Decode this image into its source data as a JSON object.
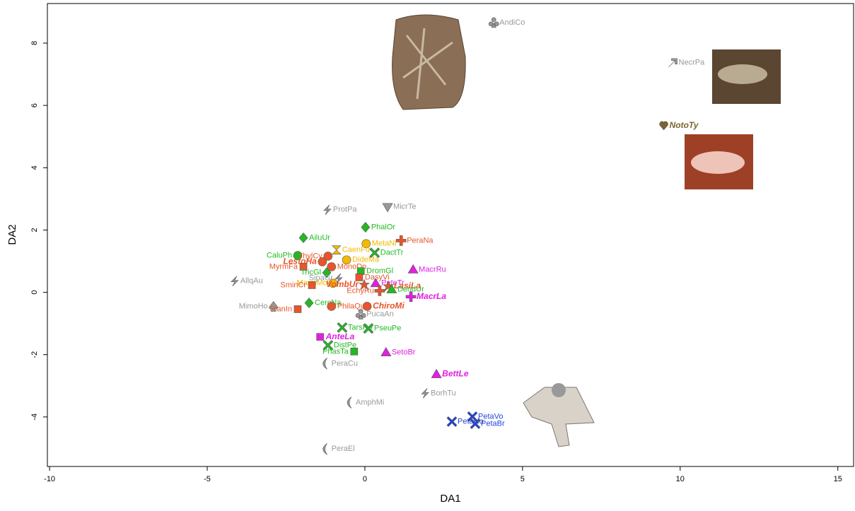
{
  "chart_data": {
    "type": "scatter",
    "x_label": "DA1",
    "y_label": "DA2",
    "xlim": [
      -10.07,
      15.5
    ],
    "ylim": [
      -5.59,
      9.27
    ],
    "xticks": [
      -10,
      -5,
      0,
      5,
      10,
      15
    ],
    "yticks": [
      -4,
      -2,
      0,
      2,
      4,
      6,
      8
    ],
    "points": [
      {
        "label": "AndiCo",
        "x": 4.09,
        "y": 8.66,
        "color": "#999999",
        "marker": "club",
        "emphasis": false
      },
      {
        "label": "NecrPa",
        "x": 9.77,
        "y": 7.37,
        "color": "#999999",
        "marker": "arrow",
        "emphasis": false
      },
      {
        "label": "NotoTy",
        "x": 9.48,
        "y": 5.35,
        "color": "#7a6530",
        "marker": "heart",
        "emphasis": true
      },
      {
        "label": "ProtPa",
        "x": -1.19,
        "y": 2.65,
        "color": "#999999",
        "marker": "bolt",
        "emphasis": false
      },
      {
        "label": "MicrTe",
        "x": 0.72,
        "y": 2.74,
        "color": "#999999",
        "marker": "dtriangle",
        "emphasis": false
      },
      {
        "label": "PhalOr",
        "x": 0.02,
        "y": 2.09,
        "color": "#22b822",
        "marker": "diamond",
        "emphasis": false
      },
      {
        "label": "AiluUr",
        "x": -1.95,
        "y": 1.75,
        "color": "#22b822",
        "marker": "diamond",
        "emphasis": false
      },
      {
        "label": "PeraNa",
        "x": 1.15,
        "y": 1.66,
        "color": "#e8552a",
        "marker": "cross",
        "emphasis": false
      },
      {
        "label": "MetaNi",
        "x": 0.04,
        "y": 1.56,
        "color": "#f5b800",
        "marker": "circle",
        "emphasis": false
      },
      {
        "label": "CaenFu",
        "x": -0.9,
        "y": 1.36,
        "color": "#f5b800",
        "marker": "hourglass",
        "emphasis": false
      },
      {
        "label": "DactTr",
        "x": 0.31,
        "y": 1.27,
        "color": "#22b822",
        "marker": "x",
        "emphasis": false
      },
      {
        "label": "CaluPh",
        "x": -2.13,
        "y": 1.18,
        "color": "#22b822",
        "marker": "circle",
        "emphasis": false
      },
      {
        "label": "ThylCy",
        "x": -1.17,
        "y": 1.16,
        "color": "#e8552a",
        "marker": "circle",
        "emphasis": false
      },
      {
        "label": "DideMa",
        "x": -0.58,
        "y": 1.04,
        "color": "#f5b800",
        "marker": "circle",
        "emphasis": false
      },
      {
        "label": "LestoHa",
        "x": -1.35,
        "y": 0.98,
        "color": "#e8552a",
        "marker": "circle",
        "emphasis": true
      },
      {
        "label": "MyrmFa",
        "x": -1.95,
        "y": 0.82,
        "color": "#e8552a",
        "marker": "square",
        "emphasis": false
      },
      {
        "label": "MonoDo",
        "x": -1.06,
        "y": 0.82,
        "color": "#e8552a",
        "marker": "circle",
        "emphasis": false
      },
      {
        "label": "DromGl",
        "x": -0.13,
        "y": 0.68,
        "color": "#22b822",
        "marker": "square",
        "emphasis": false
      },
      {
        "label": "TricGl",
        "x": -1.21,
        "y": 0.63,
        "color": "#22b822",
        "marker": "diamond",
        "emphasis": false
      },
      {
        "label": "MacrRu",
        "x": 1.53,
        "y": 0.73,
        "color": "#e020e0",
        "marker": "triangle",
        "emphasis": false
      },
      {
        "label": "DasyVi",
        "x": -0.18,
        "y": 0.48,
        "color": "#e8552a",
        "marker": "square",
        "emphasis": false
      },
      {
        "label": "SipaGr",
        "x": -0.83,
        "y": 0.45,
        "color": "#999999",
        "marker": "bolt",
        "emphasis": false
      },
      {
        "label": "AllqAu",
        "x": -4.13,
        "y": 0.36,
        "color": "#999999",
        "marker": "bolt",
        "emphasis": false
      },
      {
        "label": "PeteTr",
        "x": 0.34,
        "y": 0.29,
        "color": "#e020e0",
        "marker": "triangle",
        "emphasis": false
      },
      {
        "label": "MarmMo",
        "x": -1.01,
        "y": 0.29,
        "color": "#f5b800",
        "marker": "circle",
        "emphasis": false
      },
      {
        "label": "VombUr",
        "x": -0.02,
        "y": 0.25,
        "color": "#e8552a",
        "marker": "star",
        "emphasis": true
      },
      {
        "label": "SminCr",
        "x": -1.68,
        "y": 0.23,
        "color": "#e8552a",
        "marker": "square",
        "emphasis": false
      },
      {
        "label": "LasiLa",
        "x": 0.74,
        "y": 0.2,
        "color": "#e8552a",
        "marker": "star",
        "emphasis": true
      },
      {
        "label": "DendUr",
        "x": 0.85,
        "y": 0.09,
        "color": "#22b822",
        "marker": "triangle",
        "emphasis": false
      },
      {
        "label": "EchyRu",
        "x": 0.47,
        "y": 0.05,
        "color": "#e8552a",
        "marker": "cross",
        "emphasis": false
      },
      {
        "label": "MacrLa",
        "x": 1.46,
        "y": -0.14,
        "color": "#e020e0",
        "marker": "cross",
        "emphasis": true
      },
      {
        "label": "CercNa",
        "x": -1.77,
        "y": -0.34,
        "color": "#22b822",
        "marker": "diamond",
        "emphasis": false
      },
      {
        "label": "MimoHo",
        "x": -2.9,
        "y": -0.45,
        "color": "#999999",
        "marker": "spade",
        "emphasis": false
      },
      {
        "label": "PhilaQu",
        "x": -1.06,
        "y": -0.45,
        "color": "#e8552a",
        "marker": "circle",
        "emphasis": false
      },
      {
        "label": "ChiroMi",
        "x": 0.07,
        "y": -0.45,
        "color": "#e8552a",
        "marker": "circle",
        "emphasis": true
      },
      {
        "label": "PlanIn",
        "x": -2.13,
        "y": -0.54,
        "color": "#e8552a",
        "marker": "square",
        "emphasis": false
      },
      {
        "label": "PucaAn",
        "x": -0.13,
        "y": -0.7,
        "color": "#999999",
        "marker": "club",
        "emphasis": false
      },
      {
        "label": "TarsRo",
        "x": -0.72,
        "y": -1.13,
        "color": "#22b822",
        "marker": "x",
        "emphasis": false
      },
      {
        "label": "PseuPe",
        "x": 0.11,
        "y": -1.16,
        "color": "#22b822",
        "marker": "x",
        "emphasis": false
      },
      {
        "label": "AnteLa",
        "x": -1.42,
        "y": -1.43,
        "color": "#e020e0",
        "marker": "square",
        "emphasis": true
      },
      {
        "label": "DistPe",
        "x": -1.17,
        "y": -1.7,
        "color": "#22b822",
        "marker": "x",
        "emphasis": false
      },
      {
        "label": "PhasTa",
        "x": -0.34,
        "y": -1.9,
        "color": "#22b822",
        "marker": "square",
        "emphasis": false
      },
      {
        "label": "SetoBr",
        "x": 0.67,
        "y": -1.93,
        "color": "#e020e0",
        "marker": "triangle",
        "emphasis": false
      },
      {
        "label": "PeraCu",
        "x": -1.24,
        "y": -2.29,
        "color": "#999999",
        "marker": "moon",
        "emphasis": false
      },
      {
        "label": "BettLe",
        "x": 2.27,
        "y": -2.63,
        "color": "#e020e0",
        "marker": "triangle",
        "emphasis": true
      },
      {
        "label": "BorhTu",
        "x": 1.91,
        "y": -3.24,
        "color": "#999999",
        "marker": "bolt",
        "emphasis": false
      },
      {
        "label": "AmphMi",
        "x": -0.47,
        "y": -3.54,
        "color": "#999999",
        "marker": "moon",
        "emphasis": false
      },
      {
        "label": "PetaVo",
        "x": 3.41,
        "y": -3.99,
        "color": "#2244dd",
        "marker": "x",
        "emphasis": false
      },
      {
        "label": "PetaNo",
        "x": 2.76,
        "y": -4.15,
        "color": "#2244dd",
        "marker": "x",
        "emphasis": false
      },
      {
        "label": "PetaBr",
        "x": 3.5,
        "y": -4.22,
        "color": "#2244dd",
        "marker": "x",
        "emphasis": false
      },
      {
        "label": "PeraEl",
        "x": -1.24,
        "y": -5.03,
        "color": "#999999",
        "marker": "moon",
        "emphasis": false
      }
    ]
  }
}
